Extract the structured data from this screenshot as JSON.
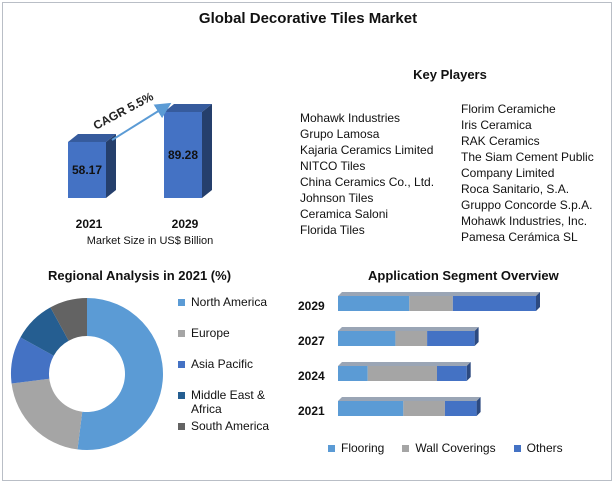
{
  "title": "Global Decorative Tiles Market",
  "market_size": {
    "cagr_label": "CAGR 5.5%",
    "caption": "Market Size in US$ Billion"
  },
  "key_players": {
    "heading": "Key Players",
    "col1": [
      "Mohawk Industries",
      "Grupo Lamosa",
      "Kajaria Ceramics Limited",
      "NITCO Tiles",
      "China Ceramics Co., Ltd.",
      "Johnson Tiles",
      "Ceramica Saloni",
      "Florida Tiles"
    ],
    "col2": [
      "Florim Ceramiche",
      "Iris Ceramica",
      "RAK Ceramics",
      "The Siam Cement Public",
      "Company Limited",
      "Roca Sanitario, S.A.",
      "Gruppo Concorde S.p.A.",
      "Mohawk Industries, Inc.",
      "Pamesa Cerámica SL"
    ]
  },
  "regional": {
    "heading": "Regional Analysis in 2021 (%)"
  },
  "application": {
    "heading": "Application Segment Overview"
  },
  "chart_data": [
    {
      "type": "bar",
      "categories": [
        "2021",
        "2029"
      ],
      "values": [
        58.17,
        89.28
      ],
      "data_labels": [
        "58.17",
        "89.28"
      ],
      "xlabel": "Market Size in US$ Billion",
      "annotation": "CAGR 5.5%",
      "color": "#4472c4"
    },
    {
      "type": "pie",
      "title": "Regional Analysis in 2021 (%)",
      "labels": [
        "North America",
        "Europe",
        "Asia Pacific",
        "Middle East & Africa",
        "South America"
      ],
      "values": [
        52,
        21,
        10,
        9,
        8
      ],
      "colors": [
        "#5b9bd5",
        "#a5a5a5",
        "#4472c4",
        "#255e91",
        "#636363"
      ],
      "donut": true,
      "legend_position": "right"
    },
    {
      "type": "bar",
      "orientation": "horizontal",
      "stacked": true,
      "title": "Application Segment Overview",
      "categories": [
        "2029",
        "2027",
        "2024",
        "2021"
      ],
      "series": [
        {
          "name": "Flooring",
          "values": [
            36,
            29,
            15,
            33
          ],
          "color": "#5b9bd5"
        },
        {
          "name": "Wall Coverings",
          "values": [
            22,
            16,
            35,
            21
          ],
          "color": "#a5a5a5"
        },
        {
          "name": "Others",
          "values": [
            42,
            24,
            15,
            16
          ],
          "color": "#4472c4"
        }
      ],
      "legend_position": "bottom"
    }
  ]
}
